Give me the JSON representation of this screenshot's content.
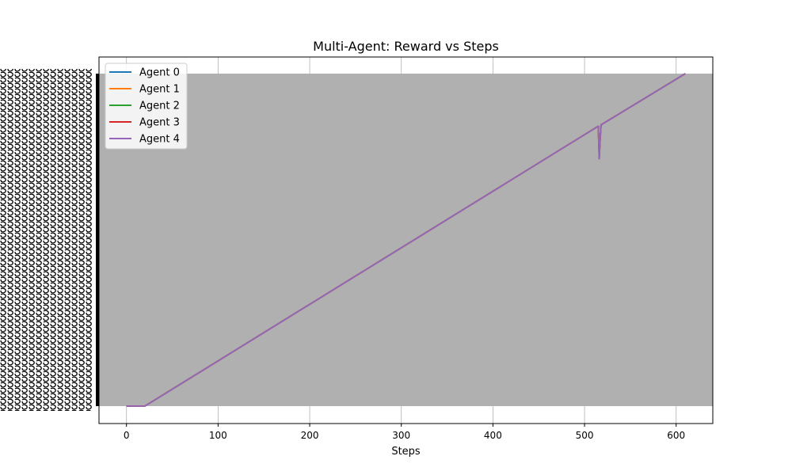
{
  "chart_data": {
    "type": "line",
    "title": "Multi-Agent: Reward vs Steps",
    "xlabel": "Steps",
    "ylabel": "",
    "xlim": [
      -30,
      640
    ],
    "x_ticks": [
      0,
      100,
      200,
      300,
      400,
      500,
      600
    ],
    "grid": true,
    "legend_position": "top-left",
    "y_tick_labels_illegible": true,
    "series": [
      {
        "name": "Agent 0",
        "color": "#1f77b4"
      },
      {
        "name": "Agent 1",
        "color": "#ff7f0e"
      },
      {
        "name": "Agent 2",
        "color": "#2ca02c"
      },
      {
        "name": "Agent 3",
        "color": "#d62728"
      },
      {
        "name": "Agent 4",
        "color": "#9467bd"
      }
    ],
    "line_shape": {
      "x": [
        0,
        20,
        515,
        516,
        517,
        518,
        610
      ],
      "y_fraction": [
        0.0,
        0.0,
        0.842,
        0.744,
        0.8,
        0.846,
        1.0
      ]
    },
    "band_color": "#b0b0b0"
  }
}
